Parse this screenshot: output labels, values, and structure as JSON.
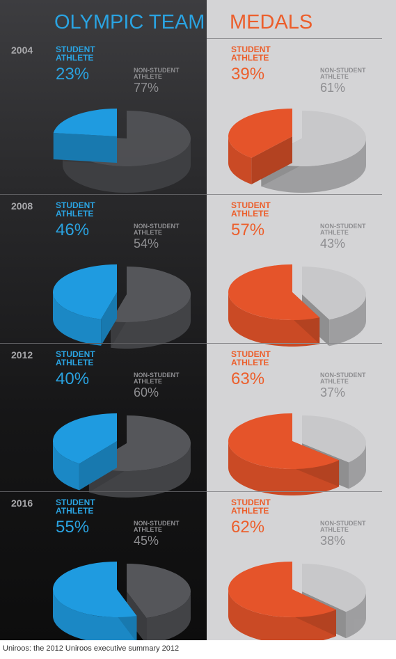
{
  "columns": {
    "left_title": "OLYMPIC TEAM",
    "right_title": "MEDALS"
  },
  "labels": {
    "student": "STUDENT\nATHLETE",
    "non_student": "NON-STUDENT\nATHLETE"
  },
  "source": "Uniroos: the 2012 Uniroos executive summary 2012",
  "colors": {
    "team_student": "#1f9be0",
    "team_non_student": "#55565a",
    "medal_student": "#e5542a",
    "medal_non_student": "#c8c8ca"
  },
  "chart_data": [
    {
      "type": "pie",
      "title": "OLYMPIC TEAM",
      "categories": [
        "2004",
        "2008",
        "2012",
        "2016"
      ],
      "series": [
        {
          "name": "STUDENT ATHLETE",
          "values": [
            23,
            46,
            40,
            55
          ]
        },
        {
          "name": "NON-STUDENT ATHLETE",
          "values": [
            77,
            54,
            60,
            45
          ]
        }
      ],
      "display": {
        "student": [
          "23%",
          "46%",
          "40%",
          "55%"
        ],
        "non_student": [
          "77%",
          "54%",
          "60%",
          "45%"
        ]
      }
    },
    {
      "type": "pie",
      "title": "MEDALS",
      "categories": [
        "2004",
        "2008",
        "2012",
        "2016"
      ],
      "series": [
        {
          "name": "STUDENT ATHLETE",
          "values": [
            39,
            57,
            63,
            62
          ]
        },
        {
          "name": "NON-STUDENT ATHLETE",
          "values": [
            61,
            43,
            37,
            38
          ]
        }
      ],
      "display": {
        "student": [
          "39%",
          "57%",
          "63%",
          "62%"
        ],
        "non_student": [
          "61%",
          "43%",
          "37%",
          "38%"
        ]
      }
    }
  ]
}
